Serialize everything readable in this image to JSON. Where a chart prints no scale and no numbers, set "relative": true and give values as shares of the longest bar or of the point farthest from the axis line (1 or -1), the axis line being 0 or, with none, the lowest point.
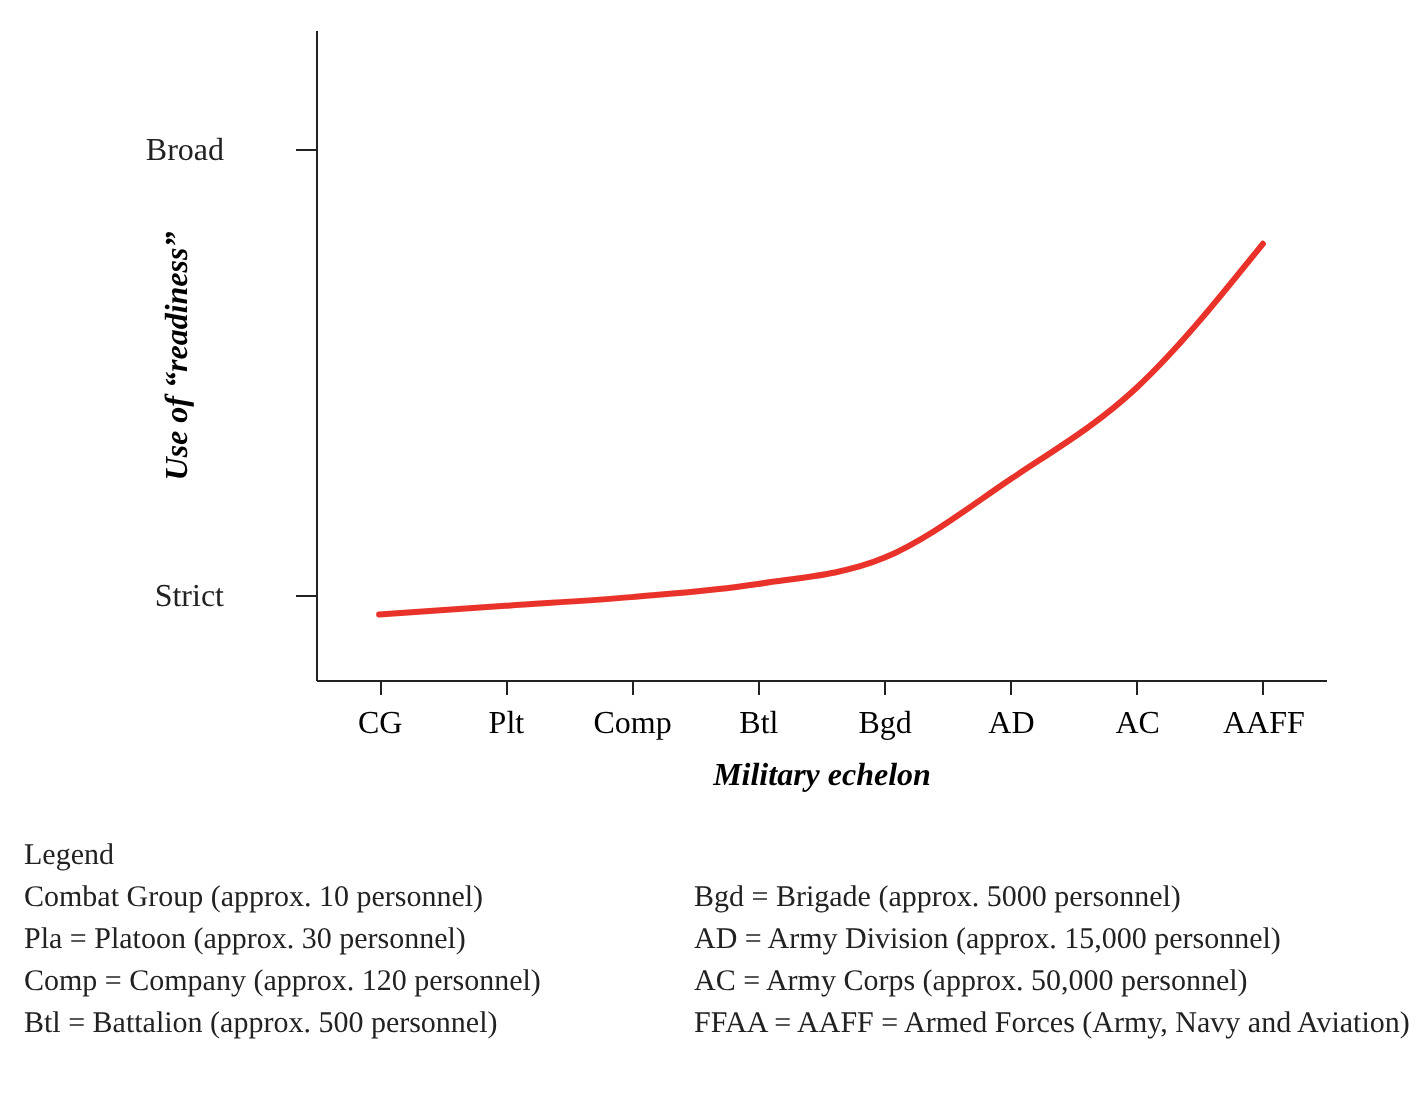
{
  "chart_data": {
    "type": "line",
    "xlabel": "Military echelon",
    "ylabel": "Use of “readiness”",
    "categories": [
      "CG",
      "Plt",
      "Comp",
      "Btl",
      "Bgd",
      "AD",
      "AC",
      "AAFF"
    ],
    "series": [
      {
        "color": "#e8322a",
        "values": [
          0.15,
          0.17,
          0.19,
          0.22,
          0.28,
          0.46,
          0.67,
          1
        ]
      }
    ],
    "relative": true,
    "grid": false,
    "marker": "none",
    "line_style": "solid",
    "annotations": [
      "Strict",
      "Broad",
      "Legend",
      "Combat Group (approx. 10 personnel)",
      "Pla = Platoon (approx. 30 personnel)",
      "Comp = Company (approx. 120 personnel)",
      "Btl = Battalion (approx. 500 personnel)",
      "Bgd = Brigade (approx. 5000 personnel)",
      "AD = Army Division (approx. 15,000 personnel)",
      "AC = Army Corps (approx. 50,000 personnel)",
      "FFAA = AAFF = Armed Forces (Army, Navy and Aviation)"
    ]
  }
}
